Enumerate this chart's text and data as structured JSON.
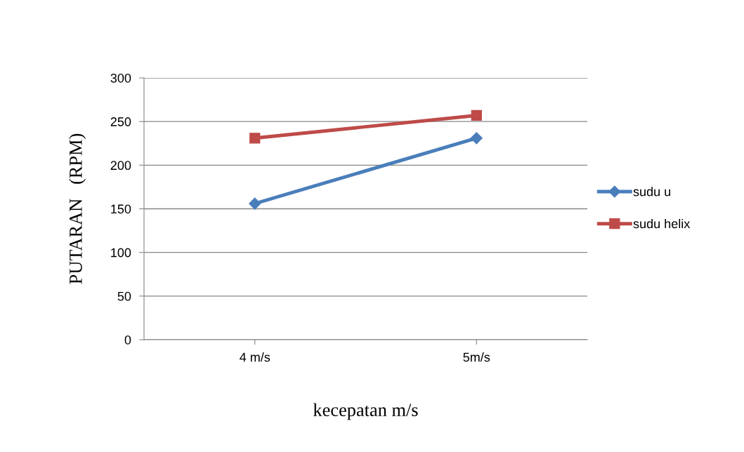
{
  "chart_data": {
    "type": "line",
    "xlabel": "kecepatan m/s",
    "ylabel": "PUTARAN   (RPM)",
    "categories": [
      "4 m/s",
      "5m/s"
    ],
    "series": [
      {
        "name": "sudu u",
        "color": "#4a7ebb",
        "marker": "diamond",
        "values": [
          156,
          231
        ]
      },
      {
        "name": "sudu helix",
        "color": "#be4b48",
        "marker": "square",
        "values": [
          231,
          257
        ]
      }
    ],
    "ylim": [
      0,
      300
    ],
    "yticks": [
      0,
      50,
      100,
      150,
      200,
      250,
      300
    ],
    "grid": "y",
    "legend": "right",
    "line_style": "solid"
  }
}
